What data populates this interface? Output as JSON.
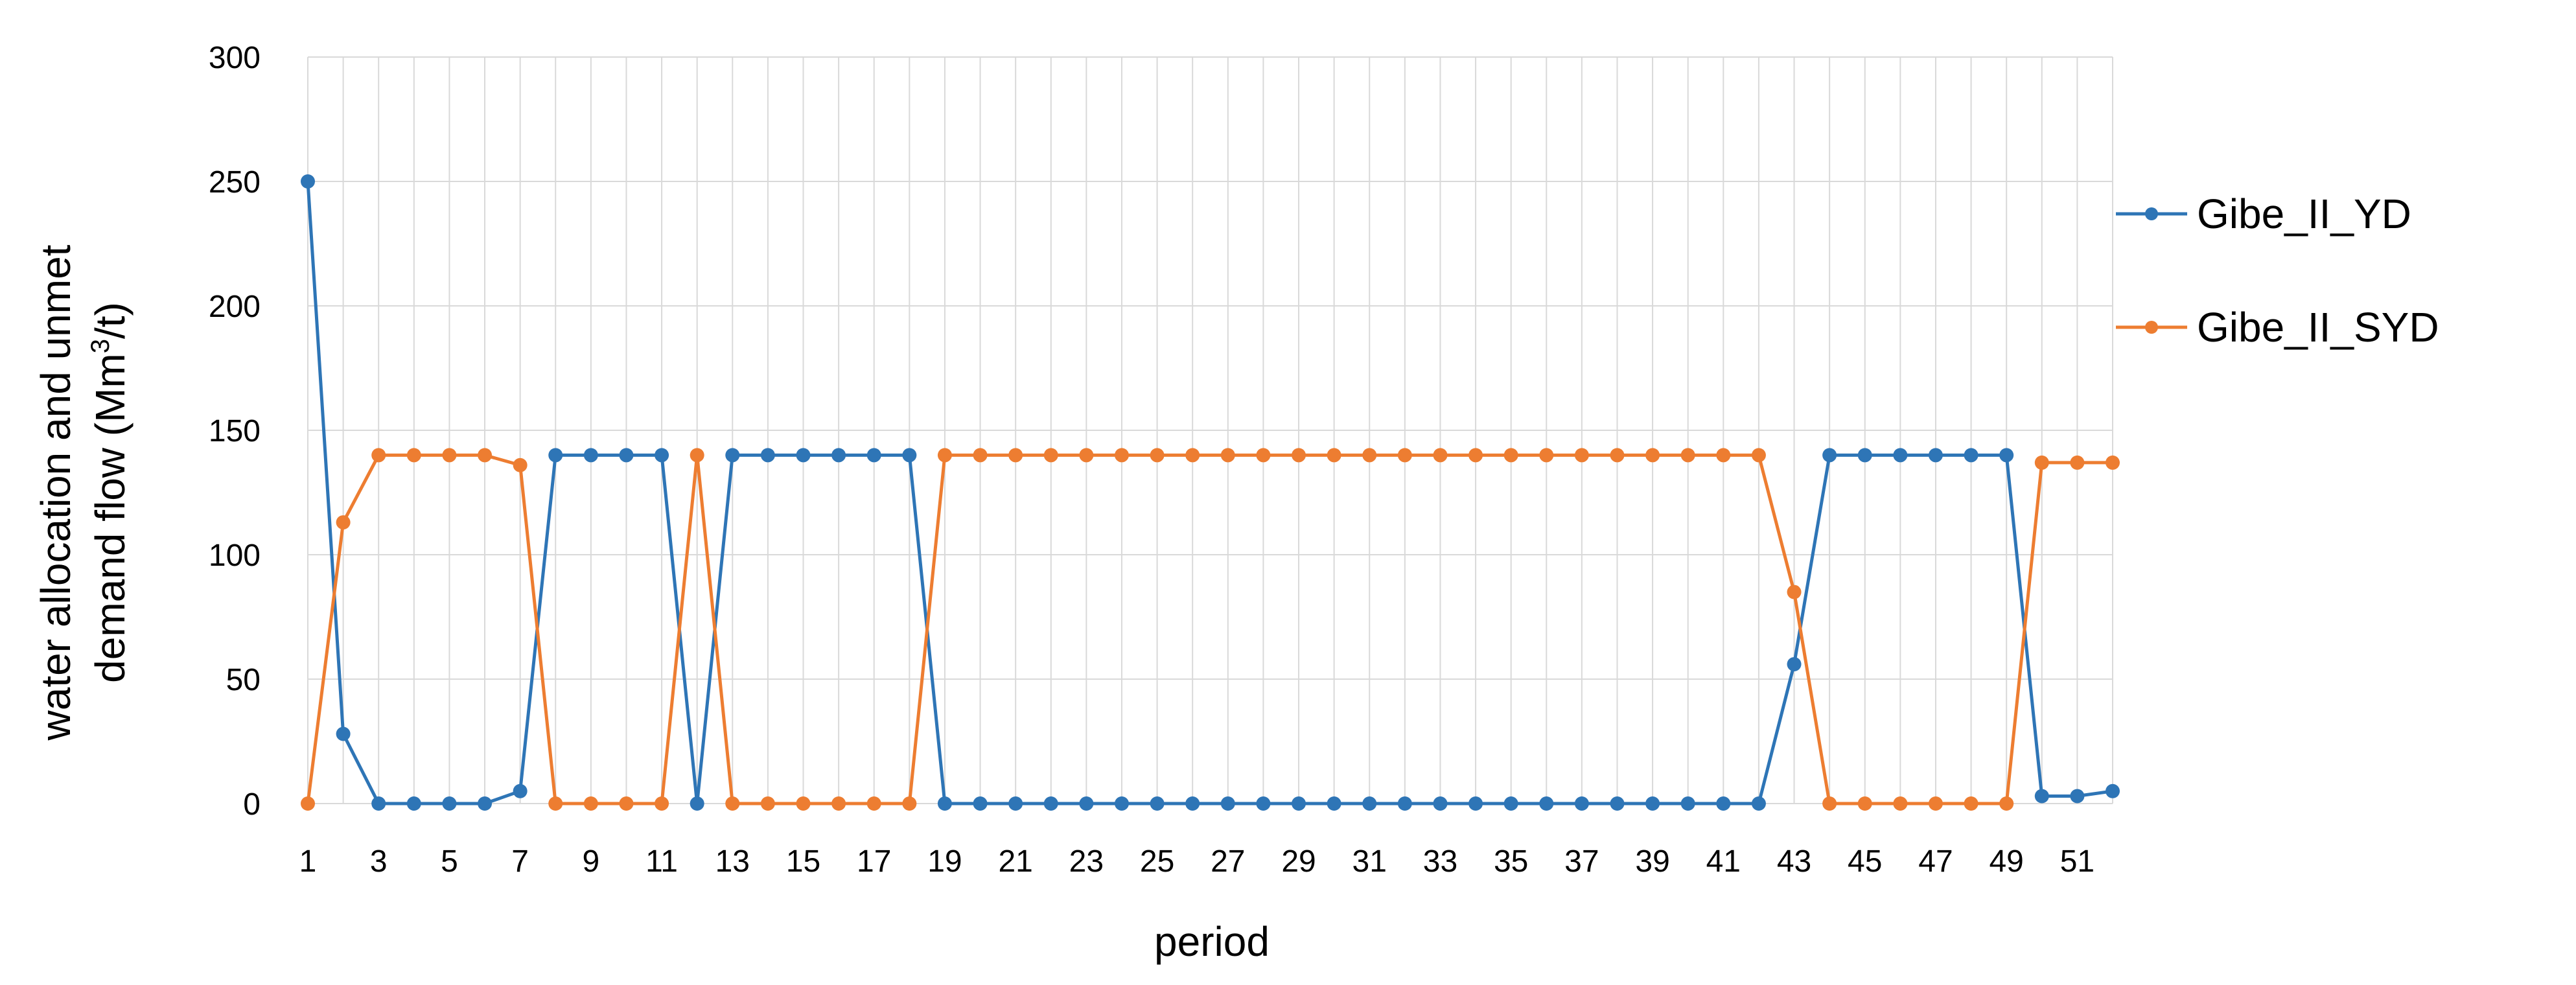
{
  "chart_data": {
    "type": "line",
    "title": "",
    "xlabel": "period",
    "ylabel_line1": "water  allocation and unmet",
    "ylabel_line2_prefix": "demand flow (Mm",
    "ylabel_superscript": "3",
    "ylabel_line2_suffix": "/t)",
    "ylim": [
      0,
      300
    ],
    "yticks": [
      0,
      50,
      100,
      150,
      200,
      250,
      300
    ],
    "x": [
      1,
      2,
      3,
      4,
      5,
      6,
      7,
      8,
      9,
      10,
      11,
      12,
      13,
      14,
      15,
      16,
      17,
      18,
      19,
      20,
      21,
      22,
      23,
      24,
      25,
      26,
      27,
      28,
      29,
      30,
      31,
      32,
      33,
      34,
      35,
      36,
      37,
      38,
      39,
      40,
      41,
      42,
      43,
      44,
      45,
      46,
      47,
      48,
      49,
      50,
      51,
      52
    ],
    "xtick_labels": [
      "1",
      "3",
      "5",
      "7",
      "9",
      "11",
      "13",
      "15",
      "17",
      "19",
      "21",
      "23",
      "25",
      "27",
      "29",
      "31",
      "33",
      "35",
      "37",
      "39",
      "41",
      "43",
      "45",
      "47",
      "49",
      "51"
    ],
    "grid": true,
    "legend_position": "right",
    "series": [
      {
        "name": "Gibe_II_YD",
        "color": "#2E75B6",
        "values": [
          250,
          28,
          0,
          0,
          0,
          0,
          5,
          140,
          140,
          140,
          140,
          0,
          140,
          140,
          140,
          140,
          140,
          140,
          0,
          0,
          0,
          0,
          0,
          0,
          0,
          0,
          0,
          0,
          0,
          0,
          0,
          0,
          0,
          0,
          0,
          0,
          0,
          0,
          0,
          0,
          0,
          0,
          56,
          140,
          140,
          140,
          140,
          140,
          140,
          3,
          3,
          5
        ]
      },
      {
        "name": "Gibe_II_SYD",
        "color": "#ED7D31",
        "values": [
          0,
          113,
          140,
          140,
          140,
          140,
          136,
          0,
          0,
          0,
          0,
          140,
          0,
          0,
          0,
          0,
          0,
          0,
          140,
          140,
          140,
          140,
          140,
          140,
          140,
          140,
          140,
          140,
          140,
          140,
          140,
          140,
          140,
          140,
          140,
          140,
          140,
          140,
          140,
          140,
          140,
          140,
          85,
          0,
          0,
          0,
          0,
          0,
          0,
          137,
          137,
          137
        ]
      }
    ]
  }
}
